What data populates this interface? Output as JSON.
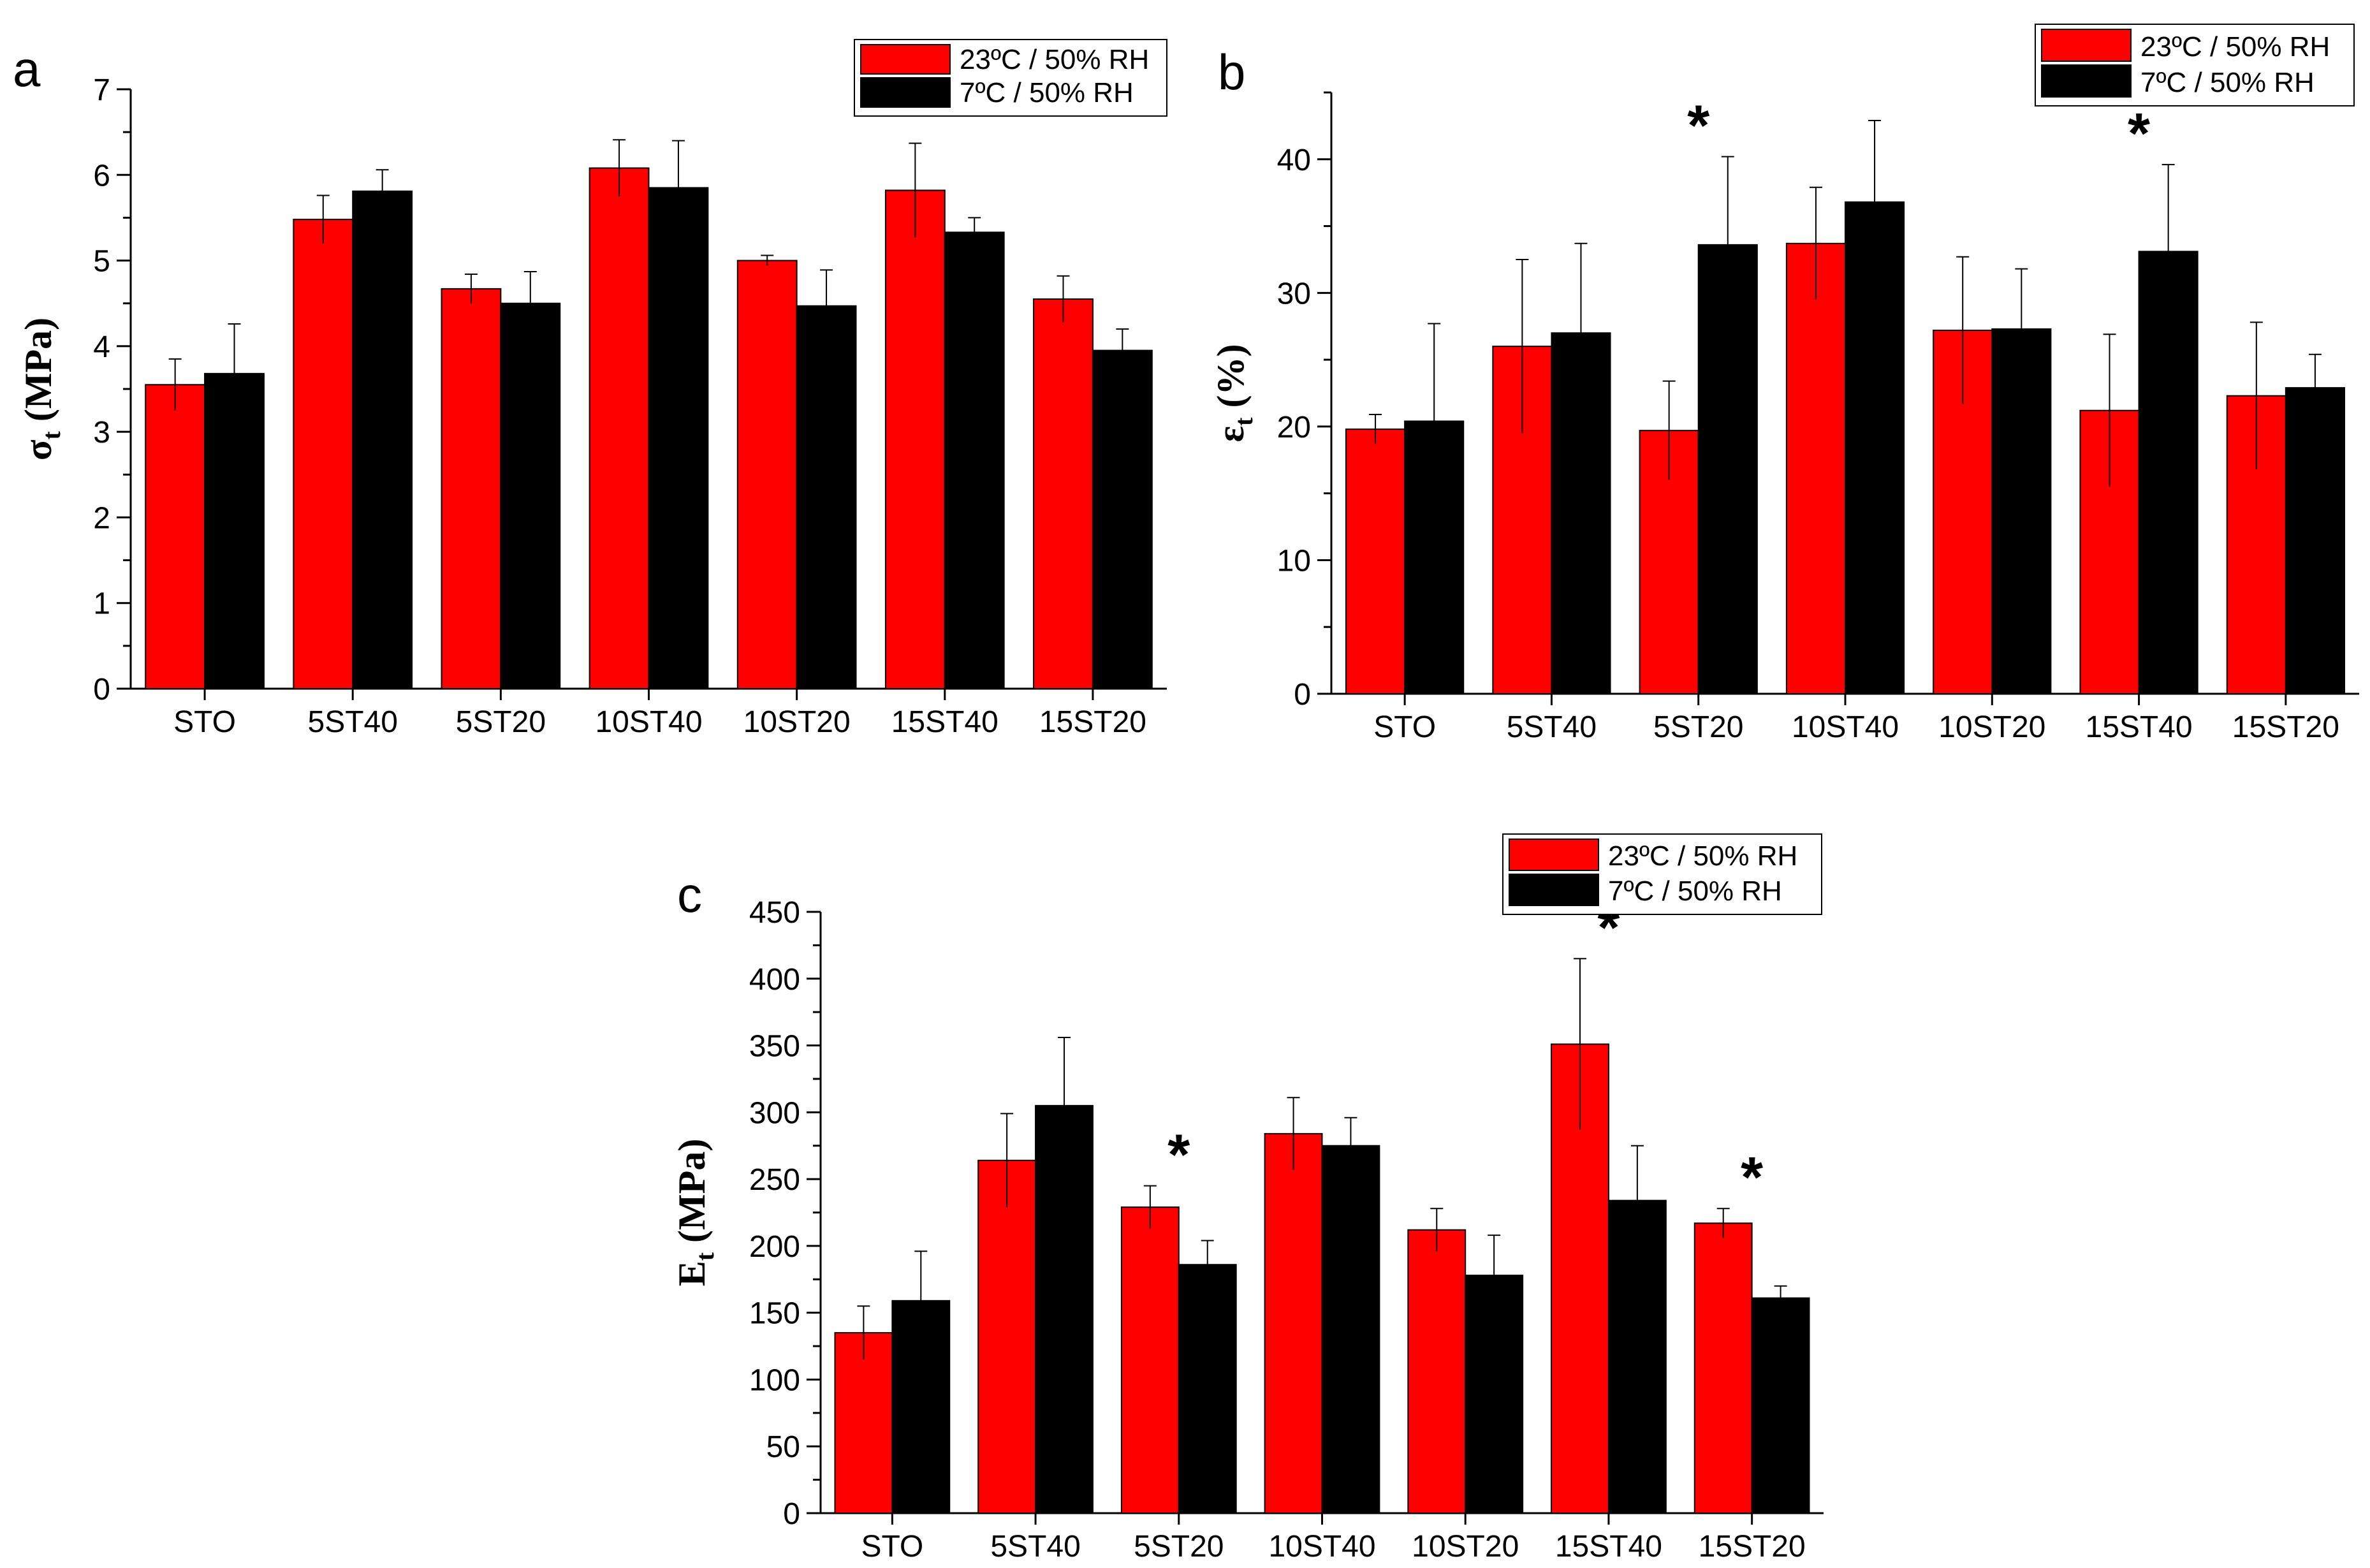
{
  "colors": {
    "warm": "#ff0000",
    "cold": "#000000"
  },
  "chart_data": [
    {
      "type": "bar",
      "panel_letter": "a",
      "ylabel_main": "σ",
      "ylabel_sub": "t",
      "ylabel_rest": " (MPa)",
      "categories": [
        "STO",
        "5ST40",
        "5ST20",
        "10ST40",
        "10ST20",
        "15ST40",
        "15ST20"
      ],
      "ylim": [
        0,
        7
      ],
      "yticks": [
        0,
        1,
        2,
        3,
        4,
        5,
        6,
        7
      ],
      "series": [
        {
          "name": "23ºC / 50% RH",
          "values": [
            3.55,
            5.48,
            4.67,
            6.08,
            5.0,
            5.82,
            4.55
          ],
          "errors": [
            0.3,
            0.28,
            0.17,
            0.33,
            0.06,
            0.55,
            0.27
          ]
        },
        {
          "name": "7ºC / 50% RH",
          "values": [
            3.68,
            5.81,
            4.5,
            5.85,
            4.47,
            5.33,
            3.95
          ],
          "errors": [
            0.58,
            0.25,
            0.37,
            0.55,
            0.42,
            0.17,
            0.25
          ]
        }
      ],
      "significance": []
    },
    {
      "type": "bar",
      "panel_letter": "b",
      "ylabel_main": "ε",
      "ylabel_sub": "t",
      "ylabel_rest": " (%)",
      "categories": [
        "STO",
        "5ST40",
        "5ST20",
        "10ST40",
        "10ST20",
        "15ST40",
        "15ST20"
      ],
      "ylim": [
        0,
        45
      ],
      "yticks": [
        0,
        10,
        20,
        30,
        40
      ],
      "series": [
        {
          "name": "23ºC / 50% RH",
          "values": [
            19.8,
            26.0,
            19.7,
            33.7,
            27.2,
            21.2,
            22.3
          ],
          "errors": [
            1.1,
            6.5,
            3.7,
            4.2,
            5.5,
            5.7,
            5.5
          ]
        },
        {
          "name": "7ºC / 50% RH",
          "values": [
            20.4,
            27.0,
            33.6,
            36.8,
            27.3,
            33.1,
            22.9
          ],
          "errors": [
            7.3,
            6.7,
            6.6,
            6.1,
            4.5,
            6.5,
            2.5
          ]
        }
      ],
      "significance": [
        {
          "category_index": 2,
          "label": "*"
        },
        {
          "category_index": 5,
          "label": "*"
        }
      ]
    },
    {
      "type": "bar",
      "panel_letter": "c",
      "ylabel_main": "E",
      "ylabel_sub": "t",
      "ylabel_rest": " (MPa)",
      "categories": [
        "STO",
        "5ST40",
        "5ST20",
        "10ST40",
        "10ST20",
        "15ST40",
        "15ST20"
      ],
      "ylim": [
        0,
        450
      ],
      "yticks": [
        0,
        50,
        100,
        150,
        200,
        250,
        300,
        350,
        400,
        450
      ],
      "series": [
        {
          "name": "23ºC / 50% RH",
          "values": [
            135,
            264,
            229,
            284,
            212,
            351,
            217
          ],
          "errors": [
            20,
            35,
            16,
            27,
            16,
            64,
            11
          ]
        },
        {
          "name": "7ºC / 50% RH",
          "values": [
            159,
            305,
            186,
            275,
            178,
            234,
            161
          ],
          "errors": [
            37,
            51,
            18,
            21,
            30,
            41,
            9
          ]
        }
      ],
      "significance": [
        {
          "category_index": 2,
          "label": "*"
        },
        {
          "category_index": 5,
          "label": "*"
        },
        {
          "category_index": 6,
          "label": "*"
        }
      ]
    }
  ]
}
